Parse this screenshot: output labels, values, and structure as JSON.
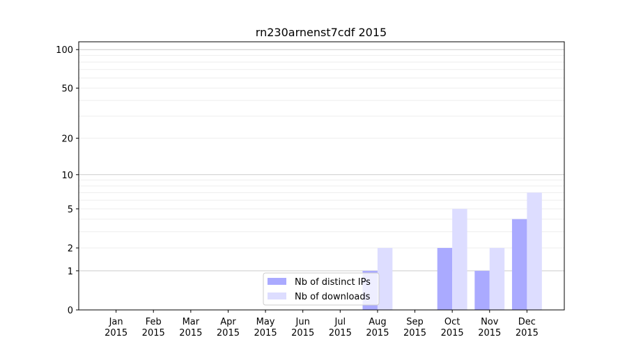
{
  "chart_data": {
    "type": "bar",
    "title": "rn230arnenst7cdf 2015",
    "categories": [
      "Jan\n2015",
      "Feb\n2015",
      "Mar\n2015",
      "Apr\n2015",
      "May\n2015",
      "Jun\n2015",
      "Jul\n2015",
      "Aug\n2015",
      "Sep\n2015",
      "Oct\n2015",
      "Nov\n2015",
      "Dec\n2015"
    ],
    "series": [
      {
        "name": "Nb of distinct IPs",
        "color": "#aaaaff",
        "values": [
          0,
          0,
          0,
          0,
          0,
          0,
          0,
          1,
          0,
          2,
          1,
          4
        ]
      },
      {
        "name": "Nb of downloads",
        "color": "#ddddff",
        "values": [
          0,
          0,
          0,
          0,
          0,
          0,
          0,
          2,
          0,
          5,
          2,
          7
        ]
      }
    ],
    "yscale": "log(1+y)",
    "ylim": [
      0,
      115
    ],
    "yticks": [
      0,
      1,
      2,
      5,
      10,
      20,
      50,
      100
    ],
    "grid": true,
    "legend": "lower-center"
  }
}
